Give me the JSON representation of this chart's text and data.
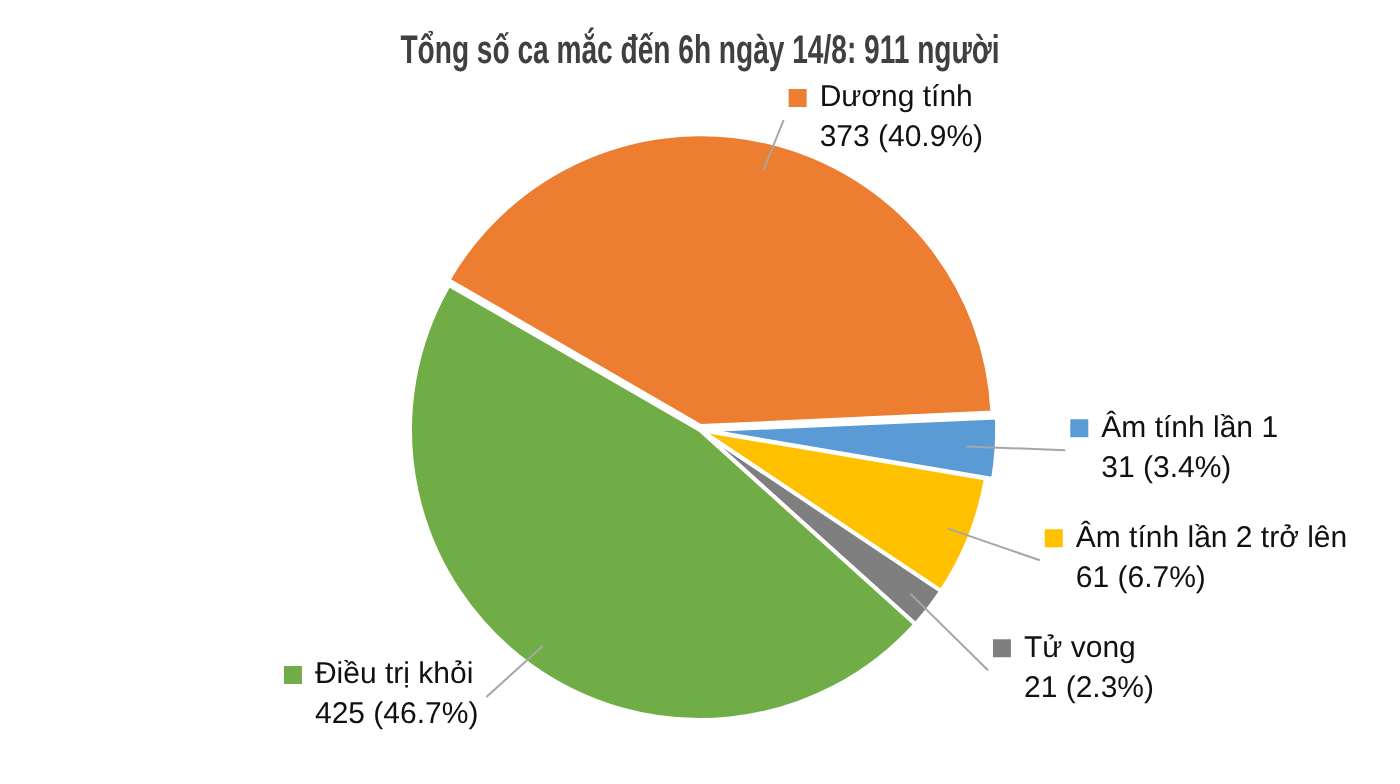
{
  "chart_data": {
    "type": "pie",
    "title": "Tổng số ca mắc đến 6h ngày 14/8: 911 người",
    "categories": [
      "Dương tính",
      "Âm tính lần 1",
      "Âm tính lần 2 trở lên",
      "Tử vong",
      "Điều trị khỏi"
    ],
    "values": [
      373,
      31,
      61,
      21,
      425
    ],
    "colors": [
      "#ed7d31",
      "#5b9bd5",
      "#ffc000",
      "#7f7f7f",
      "#70ad47"
    ],
    "value_labels": [
      "373 (40.9%)",
      "31 (3.4%)",
      "61 (6.7%)",
      "21 (2.3%)",
      "425 (46.7%)"
    ],
    "legend": "right"
  }
}
